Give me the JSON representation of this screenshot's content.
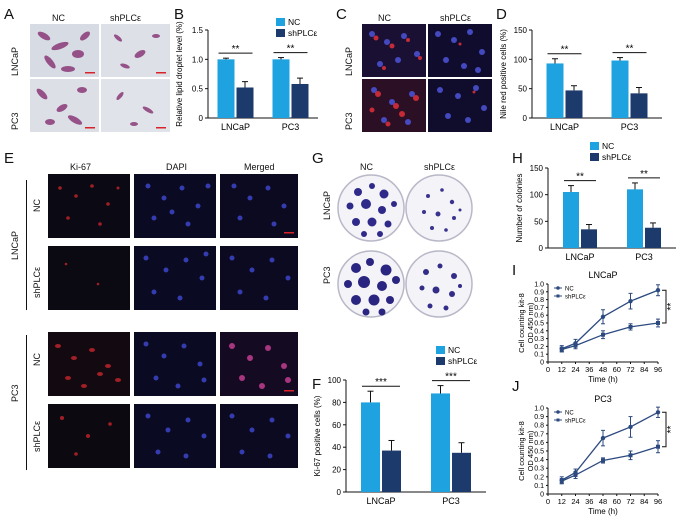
{
  "figure": {
    "panels": {
      "A": {
        "letter": "A",
        "col_labels": [
          "NC",
          "shPLCε"
        ],
        "row_labels": [
          "LNCaP",
          "PC3"
        ]
      },
      "C": {
        "letter": "C",
        "col_labels": [
          "NC",
          "shPLCε"
        ],
        "row_labels": [
          "LNCaP",
          "PC3"
        ]
      },
      "E": {
        "letter": "E",
        "col_labels": [
          "Ki-67",
          "DAPI",
          "Merged"
        ],
        "groups": [
          "LNCaP",
          "PC3"
        ],
        "row_labels": [
          "NC",
          "shPLCε",
          "NC",
          "shPLCε"
        ]
      },
      "G": {
        "letter": "G",
        "col_labels": [
          "NC",
          "shPLCε"
        ],
        "row_labels": [
          "LNCaP",
          "PC3"
        ]
      },
      "B": {
        "letter": "B"
      },
      "D": {
        "letter": "D"
      },
      "F": {
        "letter": "F"
      },
      "H": {
        "letter": "H"
      },
      "I": {
        "letter": "I"
      },
      "J": {
        "letter": "J"
      }
    },
    "colors": {
      "nc": "#1fa3e0",
      "sh": "#1c3a6b",
      "text": "#111111",
      "red_stain": "#d9232b",
      "blue_stain": "#3340b8"
    }
  },
  "chart_data": [
    {
      "id": "B",
      "type": "bar",
      "categories": [
        "LNCaP",
        "PC3"
      ],
      "series": [
        {
          "name": "NC",
          "values": [
            1.0,
            1.0
          ],
          "errors": [
            0.02,
            0.03
          ]
        },
        {
          "name": "shPLCε",
          "values": [
            0.52,
            0.58
          ],
          "errors": [
            0.1,
            0.1
          ]
        }
      ],
      "ylabel": "Relative lipid droplet level (%)",
      "ylim": [
        0,
        1.5
      ],
      "yticks": [
        "0",
        "0.5",
        "1.0",
        "1.5"
      ],
      "significance": [
        "**",
        "**"
      ],
      "legend": "top-right"
    },
    {
      "id": "D",
      "type": "bar",
      "categories": [
        "LNCaP",
        "PC3"
      ],
      "series": [
        {
          "name": "NC",
          "values": [
            93,
            98
          ],
          "errors": [
            8,
            5
          ]
        },
        {
          "name": "shPLCε",
          "values": [
            47,
            42
          ],
          "errors": [
            8,
            10
          ]
        }
      ],
      "ylabel": "Nile red positive cells (%)",
      "ylim": [
        0,
        150
      ],
      "yticks": [
        "0",
        "50",
        "100",
        "150"
      ],
      "significance": [
        "**",
        "**"
      ]
    },
    {
      "id": "F",
      "type": "bar",
      "categories": [
        "LNCaP",
        "PC3"
      ],
      "series": [
        {
          "name": "NC",
          "values": [
            80,
            88
          ],
          "errors": [
            10,
            7
          ]
        },
        {
          "name": "shPLCε",
          "values": [
            37,
            35
          ],
          "errors": [
            9,
            9
          ]
        }
      ],
      "ylabel": "Ki-67 positive cells (%)",
      "ylim": [
        0,
        100
      ],
      "yticks": [
        "0",
        "20",
        "40",
        "60",
        "80",
        "100"
      ],
      "significance": [
        "***",
        "***"
      ],
      "legend": "top"
    },
    {
      "id": "H",
      "type": "bar",
      "categories": [
        "LNCaP",
        "PC3"
      ],
      "series": [
        {
          "name": "NC",
          "values": [
            105,
            110
          ],
          "errors": [
            12,
            12
          ]
        },
        {
          "name": "shPLCε",
          "values": [
            35,
            38
          ],
          "errors": [
            9,
            9
          ]
        }
      ],
      "ylabel": "Number of colonies",
      "ylim": [
        0,
        150
      ],
      "yticks": [
        "0",
        "50",
        "100",
        "150"
      ],
      "significance": [
        "**",
        "**"
      ],
      "legend": "top"
    },
    {
      "id": "I",
      "type": "line",
      "title": "LNCaP",
      "x": [
        12,
        24,
        36,
        48,
        60,
        72,
        84,
        96
      ],
      "xticks": [
        "0",
        "12",
        "24",
        "36",
        "48",
        "60",
        "72",
        "84",
        "96"
      ],
      "series": [
        {
          "name": "NC",
          "points": [
            [
              12,
              0.17
            ],
            [
              24,
              0.24
            ],
            [
              48,
              0.58
            ],
            [
              72,
              0.78
            ],
            [
              96,
              0.92
            ]
          ],
          "errors": [
            0.04,
            0.05,
            0.09,
            0.1,
            0.07
          ]
        },
        {
          "name": "shPLCε",
          "points": [
            [
              12,
              0.16
            ],
            [
              24,
              0.21
            ],
            [
              48,
              0.35
            ],
            [
              72,
              0.45
            ],
            [
              96,
              0.5
            ]
          ],
          "errors": [
            0.03,
            0.04,
            0.05,
            0.04,
            0.05
          ]
        }
      ],
      "xlabel": "Time (h)",
      "ylabel": "Cell counting kit-8\nOD 450 nm)",
      "ylim": [
        0,
        1.0
      ],
      "yticks": [
        "0",
        "0.1",
        "0.2",
        "0.3",
        "0.4",
        "0.5",
        "0.6",
        "0.7",
        "0.8",
        "0.9",
        "1.0"
      ],
      "significance": "**",
      "legend": "top-left"
    },
    {
      "id": "J",
      "type": "line",
      "title": "PC3",
      "x": [
        12,
        24,
        36,
        48,
        60,
        72,
        84,
        96
      ],
      "xticks": [
        "0",
        "12",
        "24",
        "36",
        "48",
        "60",
        "72",
        "84",
        "96"
      ],
      "series": [
        {
          "name": "NC",
          "points": [
            [
              12,
              0.16
            ],
            [
              24,
              0.25
            ],
            [
              48,
              0.65
            ],
            [
              72,
              0.78
            ],
            [
              96,
              0.95
            ]
          ],
          "errors": [
            0.04,
            0.04,
            0.09,
            0.12,
            0.06
          ]
        },
        {
          "name": "shPLCε",
          "points": [
            [
              12,
              0.15
            ],
            [
              24,
              0.22
            ],
            [
              48,
              0.39
            ],
            [
              72,
              0.45
            ],
            [
              96,
              0.55
            ]
          ],
          "errors": [
            0.03,
            0.04,
            0.03,
            0.05,
            0.07
          ]
        }
      ],
      "xlabel": "Time (h)",
      "ylabel": "Cell counting kit-8\nOD 450 nm)",
      "ylim": [
        0,
        1.0
      ],
      "yticks": [
        "0",
        "0.1",
        "0.2",
        "0.3",
        "0.4",
        "0.5",
        "0.6",
        "0.7",
        "0.8",
        "0.9",
        "1.0"
      ],
      "significance": "**",
      "legend": "top-left"
    }
  ]
}
